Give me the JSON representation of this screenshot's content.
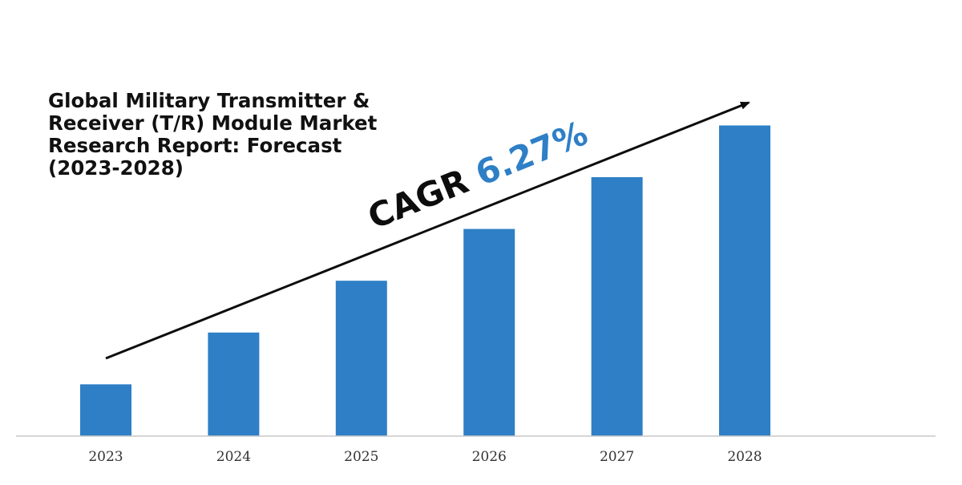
{
  "chart_data": {
    "type": "bar",
    "title": "Global Military Transmitter &\nReceiver (T/R) Module Market\nResearch Report: Forecast\n(2023-2028)",
    "categories": [
      "2023",
      "2024",
      "2025",
      "2026",
      "2027",
      "2028"
    ],
    "values": [
      1,
      2,
      3,
      4,
      5,
      6
    ],
    "ylim": [
      0,
      6.1
    ],
    "xlabel": "",
    "ylabel": "",
    "grid": false,
    "annotation": {
      "label": "CAGR",
      "value": "6.27%"
    },
    "colors": {
      "bar": "#2e7fc6",
      "accent": "#2e7fc6",
      "axis": "#c8c8c8",
      "tick_text": "#333333",
      "arrow": "#0d0d0d"
    }
  }
}
